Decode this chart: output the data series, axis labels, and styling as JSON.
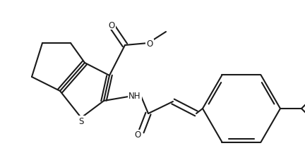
{
  "bg_color": "#ffffff",
  "line_color": "#1a1a1a",
  "line_width": 1.5,
  "figsize": [
    4.32,
    2.28
  ],
  "dpi": 100,
  "xlim": [
    0,
    4.32
  ],
  "ylim": [
    0,
    2.28
  ]
}
